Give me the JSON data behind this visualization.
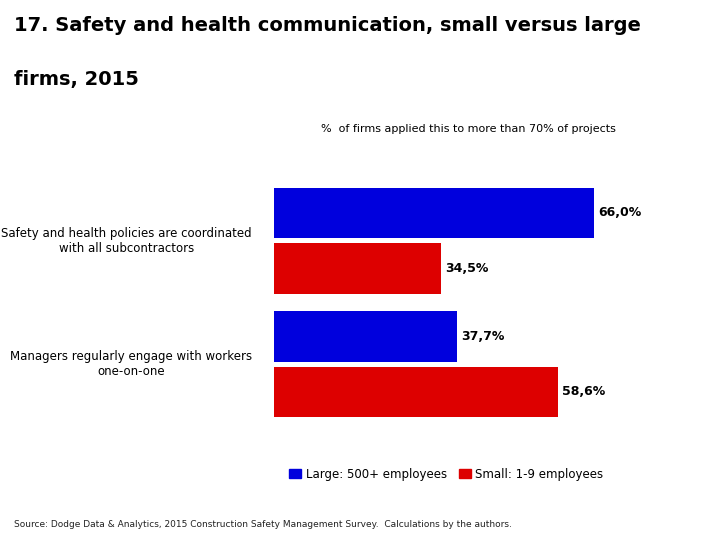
{
  "title_line1": "17. Safety and health communication, small versus large",
  "title_line2": "firms, 2015",
  "subtitle": "%  of firms applied this to more than 70% of projects",
  "categories": [
    "Safety and health policies are coordinated\nwith all subcontractors",
    "Managers regularly engage with workers\none-on-one"
  ],
  "large_values": [
    66.0,
    37.7
  ],
  "small_values": [
    34.5,
    58.6
  ],
  "large_label": "Large: 500+ employees",
  "small_label": "Small: 1-9 employees",
  "large_color": "#0000dd",
  "small_color": "#dd0000",
  "source": "Source: Dodge Data & Analytics, 2015 Construction Safety Management Survey.  Calculations by the authors.",
  "bar_height": 0.18,
  "xlim": [
    0,
    80
  ],
  "background_color": "#ffffff",
  "title_fontsize": 14,
  "label_fontsize": 8.5,
  "value_fontsize": 9,
  "subtitle_fontsize": 8
}
